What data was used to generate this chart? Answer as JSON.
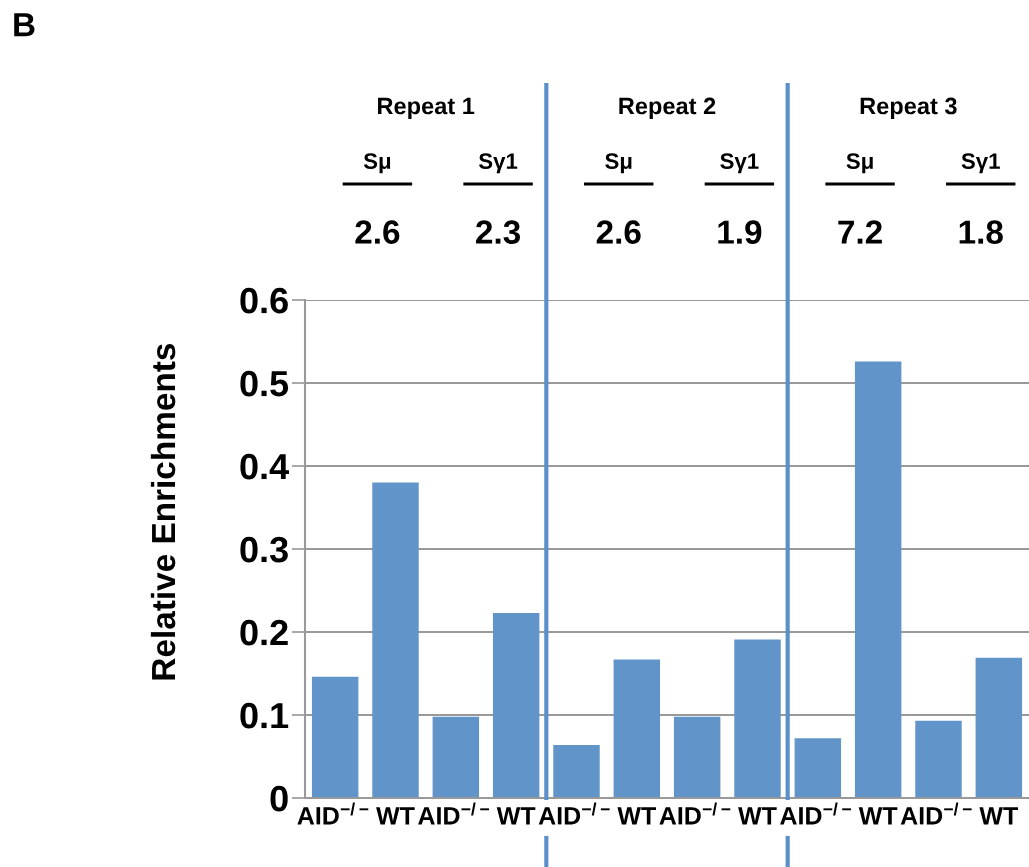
{
  "chart_data": {
    "type": "bar",
    "title": "B",
    "ylabel": "Relative Enrichments",
    "categories": [
      "AID$^{−/−}$",
      "WT",
      "AID$^{−/−}$",
      "WT",
      "AID$^{−/−}$",
      "WT",
      "AID$^{−/−}$",
      "WT",
      "AID$^{−/−}$",
      "WT",
      "AID$^{−/−}$",
      "WT"
    ],
    "values": [
      0.146,
      0.38,
      0.098,
      0.223,
      0.064,
      0.167,
      0.098,
      0.191,
      0.072,
      0.526,
      0.093,
      0.169
    ],
    "color": "#6195c9",
    "ylim": [
      0,
      0.6
    ],
    "yticks": [
      0,
      0.1,
      0.2,
      0.3,
      0.4,
      0.5,
      0.6
    ],
    "grid": "y",
    "annotations": [
      "Repeat 1",
      "Repeat 2",
      "Repeat 3",
      "Sμ",
      "Sγ1",
      "Sμ",
      "Sγ1",
      "Sμ",
      "Sγ1",
      "2.6",
      "2.3",
      "2.6",
      "1.9",
      "7.2",
      "1.8"
    ]
  }
}
